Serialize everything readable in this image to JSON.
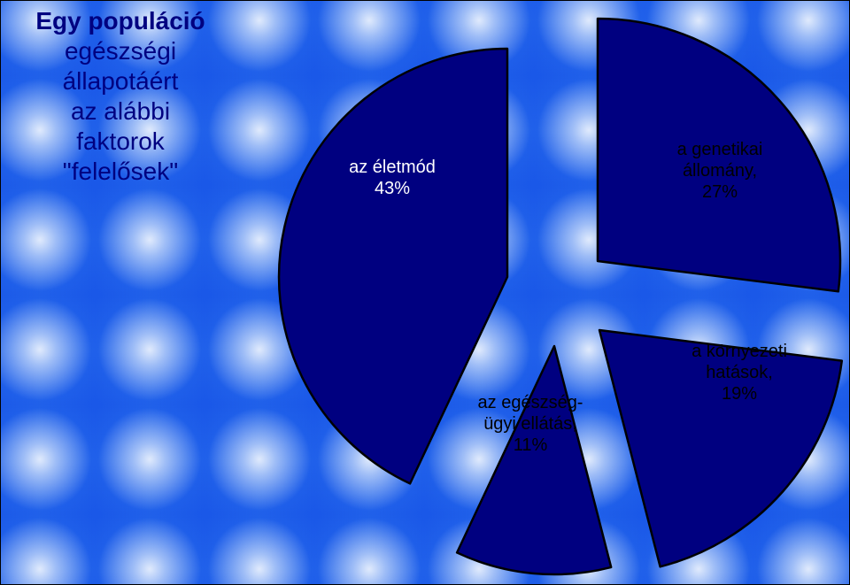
{
  "title": {
    "first_line": "Egy populáció",
    "rest": "egészségi\nállapotáért\naz alábbi\nfaktorok\n\"felelősek\""
  },
  "chart_data": {
    "type": "pie",
    "exploded": true,
    "slice_color": "#000080",
    "slices": [
      {
        "label": "a genetikai\nállomány,\n27%",
        "value": 27
      },
      {
        "label": "a környezeti\nhatások,\n19%",
        "value": 19
      },
      {
        "label": "az egészség-\nügyi ellátás,\n11%",
        "value": 11
      },
      {
        "label": "az életmód\n43%",
        "value": 43
      }
    ]
  }
}
